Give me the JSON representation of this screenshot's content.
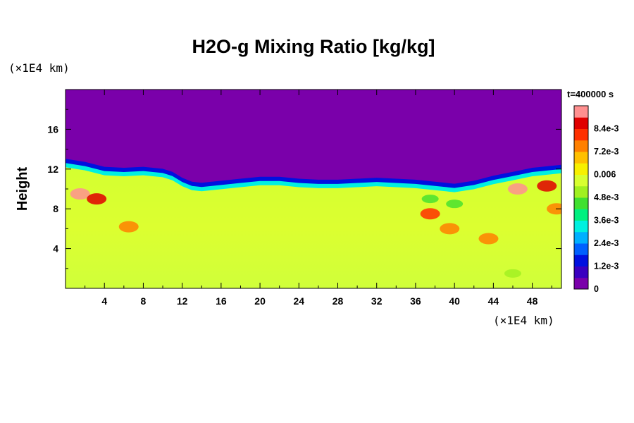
{
  "chart_data": {
    "type": "heatmap",
    "title": "H2O-g Mixing Ratio [kg/kg]",
    "ylabel": "Height",
    "xlabel": "",
    "x_unit": "(×1E4 km)",
    "y_unit": "(×1E4 km)",
    "time_label": "t=400000 s",
    "xlim": [
      0,
      51
    ],
    "ylim": [
      0,
      20
    ],
    "x_ticks": [
      4,
      8,
      12,
      16,
      20,
      24,
      28,
      32,
      36,
      40,
      44,
      48
    ],
    "x_tick_labels": [
      "4",
      "8",
      "12",
      "16",
      "20",
      "24",
      "28",
      "32",
      "36",
      "40",
      "44",
      "48"
    ],
    "y_ticks": [
      4,
      8,
      12,
      16
    ],
    "y_tick_labels": [
      "4",
      "8",
      "12",
      "16"
    ],
    "colorbar": {
      "min": 0,
      "max": 0.0096,
      "tick_values": [
        0,
        0.0012,
        0.0024,
        0.0036,
        0.0048,
        0.006,
        0.0072,
        0.0084
      ],
      "tick_labels": [
        "0",
        "1.2e-3",
        "2.4e-3",
        "3.6e-3",
        "4.8e-3",
        "0.006",
        "7.2e-3",
        "8.4e-3"
      ],
      "colors": [
        "#7a00aa",
        "#3a00c0",
        "#0010e0",
        "#0060ff",
        "#00b0ff",
        "#00f0e0",
        "#00f080",
        "#40e030",
        "#a0f020",
        "#d8ff30",
        "#f8f000",
        "#ffc000",
        "#ff8000",
        "#ff3000",
        "#e00000",
        "#ff9090"
      ]
    },
    "interface_height": [
      [
        0,
        12.6
      ],
      [
        2,
        12.3
      ],
      [
        4,
        11.8
      ],
      [
        6,
        11.7
      ],
      [
        8,
        11.8
      ],
      [
        10,
        11.6
      ],
      [
        11,
        11.3
      ],
      [
        12,
        10.7
      ],
      [
        13,
        10.3
      ],
      [
        14,
        10.2
      ],
      [
        16,
        10.4
      ],
      [
        18,
        10.6
      ],
      [
        20,
        10.8
      ],
      [
        22,
        10.8
      ],
      [
        24,
        10.6
      ],
      [
        26,
        10.5
      ],
      [
        28,
        10.5
      ],
      [
        30,
        10.6
      ],
      [
        32,
        10.7
      ],
      [
        34,
        10.6
      ],
      [
        36,
        10.5
      ],
      [
        38,
        10.3
      ],
      [
        40,
        10.1
      ],
      [
        42,
        10.4
      ],
      [
        44,
        10.9
      ],
      [
        46,
        11.3
      ],
      [
        48,
        11.7
      ],
      [
        51,
        12.0
      ]
    ],
    "upper_value": 0,
    "lower_value": 0.0058,
    "lower_variation_note": "",
    "high_patches": [
      {
        "x": 1.5,
        "y": 9.5,
        "value": 0.0092
      },
      {
        "x": 3.2,
        "y": 9.0,
        "value": 0.0088
      },
      {
        "x": 6.5,
        "y": 6.2,
        "value": 0.0074
      },
      {
        "x": 37.5,
        "y": 7.5,
        "value": 0.0078
      },
      {
        "x": 39.5,
        "y": 6.0,
        "value": 0.0076
      },
      {
        "x": 43.5,
        "y": 5.0,
        "value": 0.0076
      },
      {
        "x": 46.5,
        "y": 10.0,
        "value": 0.009
      },
      {
        "x": 49.5,
        "y": 10.3,
        "value": 0.0088
      },
      {
        "x": 50.5,
        "y": 8.0,
        "value": 0.0072
      }
    ],
    "low_patches": [
      {
        "x": 37.5,
        "y": 9.0,
        "value": 0.0042
      },
      {
        "x": 40.0,
        "y": 8.5,
        "value": 0.0044
      },
      {
        "x": 46.0,
        "y": 1.5,
        "value": 0.005
      }
    ]
  }
}
